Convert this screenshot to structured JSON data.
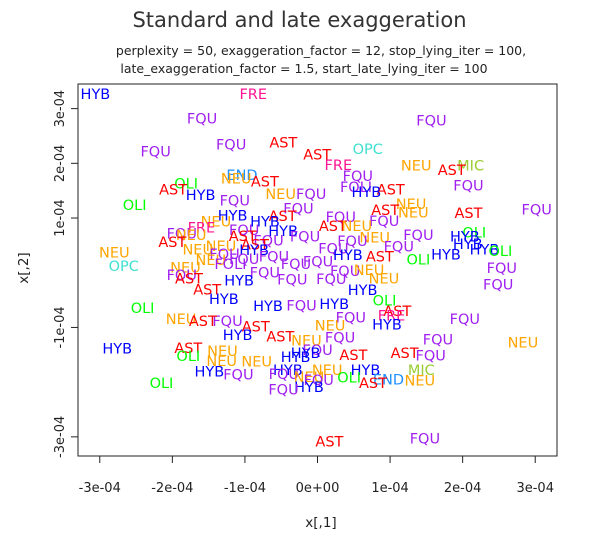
{
  "chart_data": {
    "type": "scatter",
    "title": "Standard and late exaggeration",
    "subtitle_line1": "perplexity = 50, exaggeration_factor = 12, stop_lying_iter = 100,",
    "subtitle_line2": "late_exaggeration_factor = 1.5, start_late_lying_iter = 100",
    "xlabel": "x[,1]",
    "ylabel": "x[,2]",
    "xlim": [
      -0.00033,
      0.00033
    ],
    "ylim": [
      -0.000335,
      0.000345
    ],
    "xticks": [
      -0.0003,
      -0.0002,
      -0.0001,
      0,
      0.0001,
      0.0002,
      0.0003
    ],
    "xtick_labels": [
      "-3e-04",
      "-2e-04",
      "-1e-04",
      "0e+00",
      "1e-04",
      "2e-04",
      "3e-04"
    ],
    "yticks": [
      -0.0003,
      -0.0001,
      0.0001,
      0.0002,
      0.0003
    ],
    "ytick_labels": [
      "-3e-04",
      "-1e-04",
      "1e-04",
      "2e-04",
      "3e-04"
    ],
    "grid": false,
    "legend": "none",
    "colors": {
      "HYB": "#0000ff",
      "FRE": "#ff1493",
      "FQU": "#a020f0",
      "AST": "#ff0000",
      "OPC": "#40e0d0",
      "MIC": "#9acd32",
      "NEU": "#ffa500",
      "OLI": "#00ff00",
      "END": "#1e90ff",
      "GRY": "#696969"
    },
    "points": [
      {
        "label": "HYB",
        "x": -0.000306,
        "y": 0.000325
      },
      {
        "label": "FRE",
        "x": -8.85e-05,
        "y": 0.000325
      },
      {
        "label": "FQU",
        "x": -0.000159,
        "y": 0.00028
      },
      {
        "label": "FQU",
        "x": 0.000157,
        "y": 0.000276
      },
      {
        "label": "FQU",
        "x": -0.000119,
        "y": 0.000233
      },
      {
        "label": "AST",
        "x": -4.71e-05,
        "y": 0.000236
      },
      {
        "label": "OPC",
        "x": 6.92e-05,
        "y": 0.000224
      },
      {
        "label": "FQU",
        "x": -0.000223,
        "y": 0.00022
      },
      {
        "label": "AST",
        "x": -4.08e-07,
        "y": 0.000214
      },
      {
        "label": "MIC",
        "x": 0.000211,
        "y": 0.000194
      },
      {
        "label": "NEU",
        "x": 0.000136,
        "y": 0.000194
      },
      {
        "label": "FRE",
        "x": 2.87e-05,
        "y": 0.000195
      },
      {
        "label": "AST",
        "x": 0.000185,
        "y": 0.000186
      },
      {
        "label": "END",
        "x": -0.000104,
        "y": 0.000177
      },
      {
        "label": "FQU",
        "x": 5.56e-05,
        "y": 0.000175
      },
      {
        "label": "NEU",
        "x": -0.000112,
        "y": 0.00017
      },
      {
        "label": "OLI",
        "x": -0.000181,
        "y": 0.000161
      },
      {
        "label": "AST",
        "x": -7.25e-05,
        "y": 0.000165
      },
      {
        "label": "FQU",
        "x": 0.000208,
        "y": 0.000158
      },
      {
        "label": "AST",
        "x": -0.000199,
        "y": 0.00015
      },
      {
        "label": "HYB",
        "x": -0.000161,
        "y": 0.00014
      },
      {
        "label": "FOLI",
        "x": 5.31e-05,
        "y": 0.000155
      },
      {
        "label": "FQU",
        "x": -8.62e-06,
        "y": 0.000142
      },
      {
        "label": "NEU",
        "x": -5.08e-05,
        "y": 0.000142
      },
      {
        "label": "AST",
        "x": 0.000101,
        "y": 0.00015
      },
      {
        "label": "HYB",
        "x": 6.74e-05,
        "y": 0.000146
      },
      {
        "label": "FQU",
        "x": -0.000114,
        "y": 0.00013
      },
      {
        "label": "NEU",
        "x": 0.000129,
        "y": 0.000124
      },
      {
        "label": "OLI",
        "x": -0.000252,
        "y": 0.000122
      },
      {
        "label": "FQU",
        "x": -2.62e-05,
        "y": 0.000116
      },
      {
        "label": "AST",
        "x": 9.33e-05,
        "y": 0.000113
      },
      {
        "label": "NEU",
        "x": 0.000132,
        "y": 0.000108
      },
      {
        "label": "FQU",
        "x": 0.000302,
        "y": 0.000114
      },
      {
        "label": "AST",
        "x": 0.000208,
        "y": 0.000107
      },
      {
        "label": "HYB",
        "x": -0.000117,
        "y": 0.000103
      },
      {
        "label": "AST",
        "x": -4.81e-05,
        "y": 0.000102
      },
      {
        "label": "FQU",
        "x": 3.21e-05,
        "y": 9.96e-05
      },
      {
        "label": "NEU",
        "x": -0.00014,
        "y": 9.22e-05
      },
      {
        "label": "HYB",
        "x": -7.24e-05,
        "y": 9.21e-05
      },
      {
        "label": "FQU",
        "x": 9.19e-05,
        "y": 9.28e-05
      },
      {
        "label": "FRE",
        "x": -0.00016,
        "y": 8.11e-05
      },
      {
        "label": "AST",
        "x": 2.12e-05,
        "y": 8.35e-05
      },
      {
        "label": "NEU",
        "x": 5.42e-05,
        "y": 8.36e-05
      },
      {
        "label": "FQU",
        "x": -0.000101,
        "y": 7.6e-05
      },
      {
        "label": "OLI",
        "x": 0.000216,
        "y": 7.13e-05
      },
      {
        "label": "FQU",
        "x": -0.000187,
        "y": 6.98e-05
      },
      {
        "label": "HYB",
        "x": -4.74e-05,
        "y": 7.41e-05
      },
      {
        "label": "NEU",
        "x": -0.000174,
        "y": 6.75e-05
      },
      {
        "label": "FQU",
        "x": 0.000139,
        "y": 6.75e-05
      },
      {
        "label": "HYB",
        "x": 0.000203,
        "y": 6.47e-05
      },
      {
        "label": "AST",
        "x": -0.000103,
        "y": 6.56e-05
      },
      {
        "label": "FQU",
        "x": -1.72e-05,
        "y": 6.4e-05
      },
      {
        "label": "NEU",
        "x": 7.88e-05,
        "y": 6.3e-05
      },
      {
        "label": "AST",
        "x": -0.0002,
        "y": 5.43e-05
      },
      {
        "label": "FQU",
        "x": -6.75e-05,
        "y": 5.74e-05
      },
      {
        "label": "HYB",
        "x": 0.000207,
        "y": 5.09e-05
      },
      {
        "label": "FQU",
        "x": 4.81e-05,
        "y": 5.61e-05
      },
      {
        "label": "NEU",
        "x": -0.000133,
        "y": 4.74e-05
      },
      {
        "label": "AST",
        "x": -8.61e-05,
        "y": 5e-05
      },
      {
        "label": "FQU",
        "x": 0.000112,
        "y": 4.63e-05
      },
      {
        "label": "HYB",
        "x": 0.00023,
        "y": 4.11e-05
      },
      {
        "label": "NEU",
        "x": -0.000165,
        "y": 4.06e-05
      },
      {
        "label": "OLI",
        "x": 0.000252,
        "y": 3.81e-05
      },
      {
        "label": "HYB",
        "x": -8.74e-05,
        "y": 3.93e-05
      },
      {
        "label": "FQU",
        "x": 2.19e-05,
        "y": 4.25e-05
      },
      {
        "label": "NEU",
        "x": -0.00028,
        "y": 3.56e-05
      },
      {
        "label": "FQU",
        "x": -0.000128,
        "y": 3.28e-05
      },
      {
        "label": "HYB",
        "x": 4.18e-05,
        "y": 3.09e-05
      },
      {
        "label": "HYB",
        "x": 0.000177,
        "y": 3.17e-05
      },
      {
        "label": "AST",
        "x": 8.59e-05,
        "y": 2.79e-05
      },
      {
        "label": "FQU",
        "x": -6e-05,
        "y": 2.8e-05
      },
      {
        "label": "FQU",
        "x": -0.000101,
        "y": 2.32e-05
      },
      {
        "label": "NEU",
        "x": -0.000147,
        "y": 2.18e-05
      },
      {
        "label": "OLI",
        "x": 0.000139,
        "y": 2.24e-05
      },
      {
        "label": "FQU",
        "x": 7.55e-07,
        "y": 1.83e-05
      },
      {
        "label": "FQU",
        "x": -2.97e-05,
        "y": 1.44e-05
      },
      {
        "label": "FOLI",
        "x": -0.00012,
        "y": 1.42e-05
      },
      {
        "label": "FQU",
        "x": 0.000254,
        "y": 7.22e-06
      },
      {
        "label": "OPC",
        "x": -0.000267,
        "y": 1.07e-05
      },
      {
        "label": "NEU",
        "x": -0.000182,
        "y": 7.31e-06
      },
      {
        "label": "FQU",
        "x": -0.000187,
        "y": -5.9e-06
      },
      {
        "label": "FQU",
        "x": -7.26e-05,
        "y": -1.16e-06
      },
      {
        "label": "FQU",
        "x": 3.81e-05,
        "y": 1.04e-06
      },
      {
        "label": "NEU",
        "x": 7.11e-05,
        "y": 2.77e-06
      },
      {
        "label": "AST",
        "x": -0.000177,
        "y": -1.27e-05
      },
      {
        "label": "HYB",
        "x": -0.000108,
        "y": -1.64e-05
      },
      {
        "label": "NEU",
        "x": 9.16e-05,
        "y": -1.26e-05
      },
      {
        "label": "FQU",
        "x": 1.91e-05,
        "y": -1.37e-05
      },
      {
        "label": "FQU",
        "x": -3.47e-05,
        "y": -1.38e-05
      },
      {
        "label": "FQU",
        "x": 0.000249,
        "y": -2.29e-05
      },
      {
        "label": "AST",
        "x": -0.000152,
        "y": -3.27e-05
      },
      {
        "label": "HYB",
        "x": 6.21e-05,
        "y": -3.38e-05
      },
      {
        "label": "HYB",
        "x": -0.000129,
        "y": -5e-05
      },
      {
        "label": "OLI",
        "x": 9.23e-05,
        "y": -5.26e-05
      },
      {
        "label": "HYB",
        "x": 2.31e-05,
        "y": -5.9e-05
      },
      {
        "label": "HYB",
        "x": -6.82e-05,
        "y": -6.23e-05
      },
      {
        "label": "FQU",
        "x": -2.19e-05,
        "y": -6.17e-05
      },
      {
        "label": "AST",
        "x": 0.00011,
        "y": -7.18e-05
      },
      {
        "label": "OLI",
        "x": -0.000241,
        "y": -6.62e-05
      },
      {
        "label": "FRE",
        "x": 0.000102,
        "y": -8.04e-05
      },
      {
        "label": "FQU",
        "x": 4.59e-05,
        "y": -8.36e-05
      },
      {
        "label": "NEU",
        "x": -0.000188,
        "y": -8.67e-05
      },
      {
        "label": "FQU",
        "x": 0.000203,
        "y": -8.6e-05
      },
      {
        "label": "FQU",
        "x": -0.000124,
        "y": -9.05e-05
      },
      {
        "label": "NEU",
        "x": 1.73e-05,
        "y": -9.84e-05
      },
      {
        "label": "AST",
        "x": -0.000158,
        "y": -9.02e-05
      },
      {
        "label": "AST",
        "x": -8.51e-05,
        "y": -9.97e-05
      },
      {
        "label": "HYB",
        "x": 9.58e-05,
        "y": -9.61e-05
      },
      {
        "label": "AST",
        "x": -5.12e-05,
        "y": -0.000118
      },
      {
        "label": "FQU",
        "x": 3.11e-05,
        "y": -0.00012
      },
      {
        "label": "FQU",
        "x": 0.000166,
        "y": -0.000124
      },
      {
        "label": "HYB",
        "x": -0.00011,
        "y": -0.000116
      },
      {
        "label": "NEU",
        "x": -1.52e-05,
        "y": -0.000126
      },
      {
        "label": "AST",
        "x": -0.000178,
        "y": -0.000139
      },
      {
        "label": "HYB",
        "x": -0.000276,
        "y": -0.00014
      },
      {
        "label": "FQU",
        "x": 1.23e-07,
        "y": -0.000143
      },
      {
        "label": "NEU",
        "x": -0.000131,
        "y": -0.000145
      },
      {
        "label": "AST",
        "x": 0.00012,
        "y": -0.000149
      },
      {
        "label": "NEU",
        "x": 0.000283,
        "y": -0.000129
      },
      {
        "label": "HYB",
        "x": -1.63e-05,
        "y": -0.000149
      },
      {
        "label": "AST",
        "x": 4.95e-05,
        "y": -0.000152
      },
      {
        "label": "OLI",
        "x": -0.000178,
        "y": -0.000154
      },
      {
        "label": "FQU",
        "x": 0.000156,
        "y": -0.000153
      },
      {
        "label": "HYB",
        "x": -3.02e-05,
        "y": -0.000156
      },
      {
        "label": "NEU",
        "x": -0.000132,
        "y": -0.000163
      },
      {
        "label": "NEU",
        "x": -8.38e-05,
        "y": -0.000164
      },
      {
        "label": "HYB",
        "x": -0.000149,
        "y": -0.000182
      },
      {
        "label": "HYB",
        "x": -4.09e-05,
        "y": -0.00018
      },
      {
        "label": "NEU",
        "x": 1.34e-05,
        "y": -0.00018
      },
      {
        "label": "FQU",
        "x": -4.64e-05,
        "y": -0.000187
      },
      {
        "label": "HYB",
        "x": 6.61e-05,
        "y": -0.00018
      },
      {
        "label": "MIC",
        "x": 0.000143,
        "y": -0.00018
      },
      {
        "label": "NEU",
        "x": -1.18e-05,
        "y": -0.000192
      },
      {
        "label": "FQU",
        "x": -0.000109,
        "y": -0.000188
      },
      {
        "label": "FQU",
        "x": 1.65e-06,
        "y": -0.000198
      },
      {
        "label": "OLI",
        "x": 4.36e-05,
        "y": -0.000193
      },
      {
        "label": "END",
        "x": 9.77e-05,
        "y": -0.000197
      },
      {
        "label": "NEU",
        "x": 0.000141,
        "y": -0.000199
      },
      {
        "label": "AST",
        "x": 7.64e-05,
        "y": -0.000203
      },
      {
        "label": "OLI",
        "x": -0.000215,
        "y": -0.000203
      },
      {
        "label": "HYB",
        "x": -1.17e-05,
        "y": -0.000211
      },
      {
        "label": "FQU",
        "x": -4.68e-05,
        "y": -0.000215
      },
      {
        "label": "AST",
        "x": 1.64e-05,
        "y": -0.00031
      },
      {
        "label": "FQU",
        "x": 0.000148,
        "y": -0.000305
      }
    ]
  }
}
